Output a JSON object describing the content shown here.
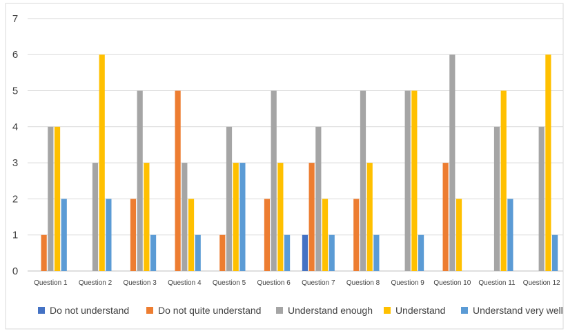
{
  "chart_data": {
    "type": "bar",
    "title": "",
    "xlabel": "",
    "ylabel": "",
    "ylim": [
      0,
      7
    ],
    "yticks": [
      0,
      1,
      2,
      3,
      4,
      5,
      6,
      7
    ],
    "grid": true,
    "legend_position": "bottom",
    "categories": [
      "Question 1",
      "Question 2",
      "Question 3",
      "Question 4",
      "Question 5",
      "Question 6",
      "Question 7",
      "Question 8",
      "Question 9",
      "Question 10",
      "Question 11",
      "Question 12"
    ],
    "series": [
      {
        "name": "Do not understand",
        "color": "#4472C4",
        "values": [
          0,
          0,
          0,
          0,
          0,
          0,
          1,
          0,
          0,
          0,
          0,
          0
        ]
      },
      {
        "name": "Do not quite understand",
        "color": "#ED7D31",
        "values": [
          1,
          0,
          2,
          5,
          1,
          2,
          3,
          2,
          0,
          3,
          0,
          0
        ]
      },
      {
        "name": "Understand enough",
        "color": "#A5A5A5",
        "values": [
          4,
          3,
          5,
          3,
          4,
          5,
          4,
          5,
          5,
          6,
          4,
          4
        ]
      },
      {
        "name": "Understand",
        "color": "#FFC000",
        "values": [
          4,
          6,
          3,
          2,
          3,
          3,
          2,
          3,
          5,
          2,
          5,
          6
        ]
      },
      {
        "name": "Understand very well",
        "color": "#5B9BD5",
        "values": [
          2,
          2,
          1,
          1,
          3,
          1,
          1,
          1,
          1,
          0,
          2,
          1
        ]
      }
    ]
  }
}
